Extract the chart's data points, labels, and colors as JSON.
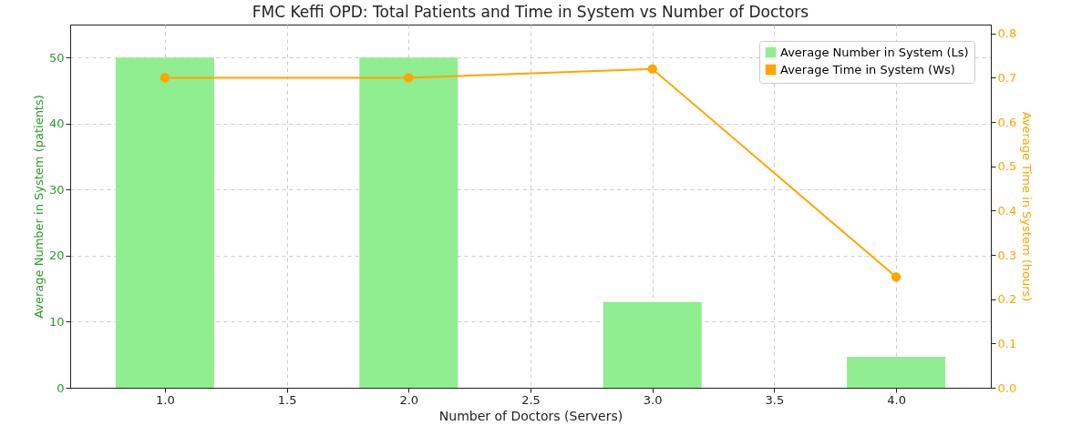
{
  "chart_data": {
    "type": "bar",
    "title": "FMC Keffi OPD: Total Patients and Time in System vs Number of Doctors",
    "xlabel": "Number of Doctors (Servers)",
    "ylabel": "Average Number in System (patients)",
    "y2label": "Average Time in System (hours)",
    "x": [
      1,
      2,
      3,
      4
    ],
    "series": [
      {
        "name": "Average Number in System (Ls)",
        "color": "#90ee90",
        "values": [
          50,
          50,
          13,
          4.7
        ]
      },
      {
        "name": "Average Time in System (Ws)",
        "type": "line",
        "axis": "y2",
        "color": "#ffa500",
        "marker": "circle",
        "values": [
          0.7,
          0.7,
          0.72,
          0.25
        ]
      }
    ],
    "xlim": [
      0.63,
      4.37
    ],
    "xticks": [
      {
        "value": 1,
        "label": "1.0"
      },
      {
        "value": 1.5,
        "label": "1.5"
      },
      {
        "value": 2,
        "label": "2.0"
      },
      {
        "value": 2.5,
        "label": "2.5"
      },
      {
        "value": 3,
        "label": "3.0"
      },
      {
        "value": 3.5,
        "label": "3.5"
      },
      {
        "value": 4,
        "label": "4.0"
      }
    ],
    "ylim": [
      0,
      55
    ],
    "yticks": [
      0,
      10,
      20,
      30,
      40,
      50
    ],
    "y2lim": [
      0,
      0.82
    ],
    "y2ticks": [
      {
        "value": 0,
        "label": "0.0"
      },
      0.1,
      0.2,
      0.3,
      0.4,
      0.5,
      0.6,
      0.7,
      0.8
    ],
    "grid": true,
    "legend": "top right"
  }
}
